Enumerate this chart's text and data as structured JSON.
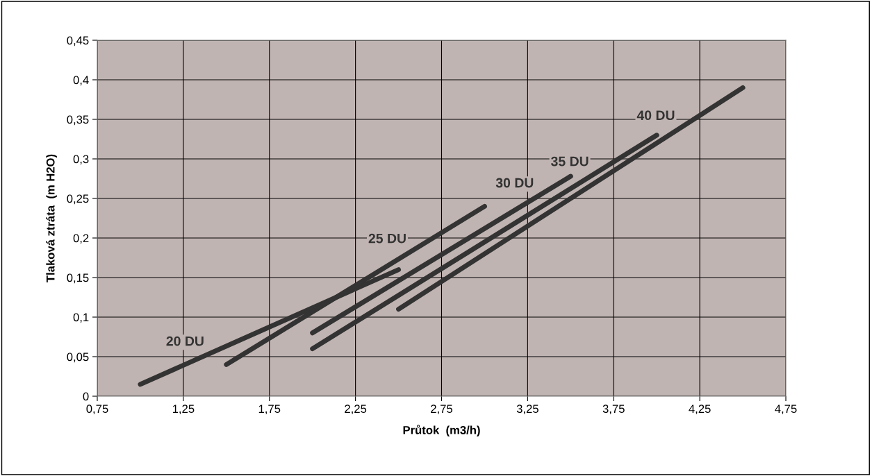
{
  "chart_data": {
    "type": "line",
    "xlabel": "Průtok  (m3/h)",
    "ylabel": "Tlaková ztráta  (m H2O)",
    "series": [
      {
        "name": "20 DU",
        "color": "#333333",
        "x": [
          1.0,
          2.5
        ],
        "values": [
          0.015,
          0.16
        ]
      },
      {
        "name": "25 DU",
        "color": "#333333",
        "x": [
          1.5,
          3.0
        ],
        "values": [
          0.04,
          0.24
        ]
      },
      {
        "name": "30 DU",
        "color": "#333333",
        "x": [
          2.0,
          3.5
        ],
        "values": [
          0.08,
          0.278
        ]
      },
      {
        "name": "35 DU",
        "color": "#333333",
        "x": [
          2.0,
          4.0
        ],
        "values": [
          0.06,
          0.33
        ]
      },
      {
        "name": "40 DU",
        "color": "#333333",
        "x": [
          2.5,
          4.5
        ],
        "values": [
          0.11,
          0.39
        ]
      }
    ],
    "xlim": [
      0.75,
      4.75
    ],
    "xticks": [
      {
        "value": 0.75,
        "label": "0,75"
      },
      {
        "value": 1.25,
        "label": "1,25"
      },
      {
        "value": 1.75,
        "label": "1,75"
      },
      {
        "value": 2.25,
        "label": "2,25"
      },
      {
        "value": 2.75,
        "label": "2,75"
      },
      {
        "value": 3.25,
        "label": "3,25"
      },
      {
        "value": 3.75,
        "label": "3,75"
      },
      {
        "value": 4.25,
        "label": "4,25"
      },
      {
        "value": 4.75,
        "label": "4,75"
      }
    ],
    "ylim": [
      0,
      0.45
    ],
    "yticks": [
      0,
      {
        "value": 0.05,
        "label": "0,05"
      },
      {
        "value": 0.1,
        "label": "0,1"
      },
      {
        "value": 0.15,
        "label": "0,15"
      },
      {
        "value": 0.2,
        "label": "0,2"
      },
      {
        "value": 0.25,
        "label": "0,25"
      },
      {
        "value": 0.3,
        "label": "0,3"
      },
      {
        "value": 0.35,
        "label": "0,35"
      },
      {
        "value": 0.4,
        "label": "0,4"
      },
      {
        "value": 0.45,
        "label": "0,45"
      }
    ],
    "grid": true,
    "legend": false,
    "marker": "none",
    "line_style": "solid"
  }
}
